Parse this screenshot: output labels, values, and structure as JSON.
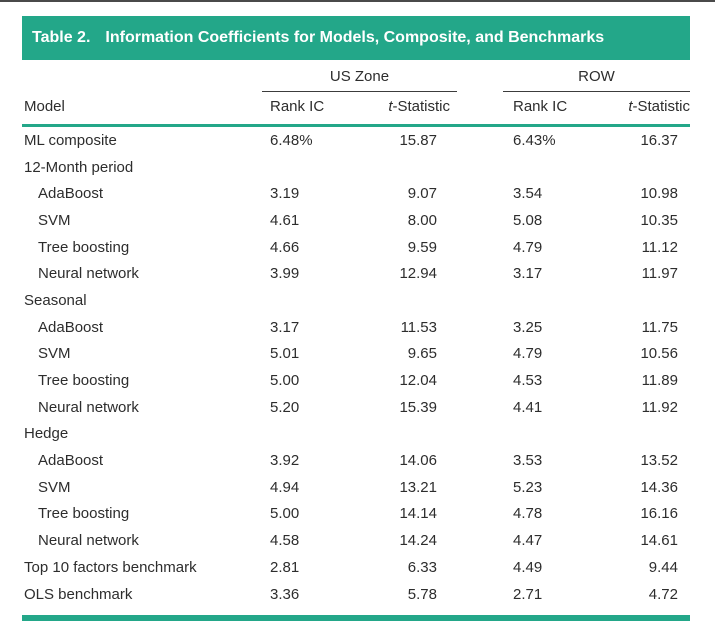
{
  "table": {
    "title_label": "Table 2.",
    "title": "Information Coefficients for Models, Composite, and Benchmarks",
    "model_header": "Model",
    "col_groups": [
      "US Zone",
      "ROW"
    ],
    "sub_headers": [
      {
        "em": "",
        "label": "Rank IC"
      },
      {
        "em": "t",
        "label": "-Statistic"
      },
      {
        "em": "",
        "label": "Rank IC"
      },
      {
        "em": "t",
        "label": "-Statistic"
      }
    ],
    "rows": [
      {
        "label": "ML composite",
        "indent": 0,
        "values": [
          "6.48%",
          "15.87",
          "6.43%",
          "16.37"
        ]
      },
      {
        "label": "12-Month period",
        "indent": 0,
        "values": [
          "",
          "",
          "",
          ""
        ]
      },
      {
        "label": "AdaBoost",
        "indent": 1,
        "values": [
          "3.19",
          "9.07",
          "3.54",
          "10.98"
        ]
      },
      {
        "label": "SVM",
        "indent": 1,
        "values": [
          "4.61",
          "8.00",
          "5.08",
          "10.35"
        ]
      },
      {
        "label": "Tree boosting",
        "indent": 1,
        "values": [
          "4.66",
          "9.59",
          "4.79",
          "11.12"
        ]
      },
      {
        "label": "Neural network",
        "indent": 1,
        "values": [
          "3.99",
          "12.94",
          "3.17",
          "11.97"
        ]
      },
      {
        "label": "Seasonal",
        "indent": 0,
        "values": [
          "",
          "",
          "",
          ""
        ]
      },
      {
        "label": "AdaBoost",
        "indent": 1,
        "values": [
          "3.17",
          "11.53",
          "3.25",
          "11.75"
        ]
      },
      {
        "label": "SVM",
        "indent": 1,
        "values": [
          "5.01",
          "9.65",
          "4.79",
          "10.56"
        ]
      },
      {
        "label": "Tree boosting",
        "indent": 1,
        "values": [
          "5.00",
          "12.04",
          "4.53",
          "11.89"
        ]
      },
      {
        "label": "Neural network",
        "indent": 1,
        "values": [
          "5.20",
          "15.39",
          "4.41",
          "11.92"
        ]
      },
      {
        "label": "Hedge",
        "indent": 0,
        "values": [
          "",
          "",
          "",
          ""
        ]
      },
      {
        "label": "AdaBoost",
        "indent": 1,
        "values": [
          "3.92",
          "14.06",
          "3.53",
          "13.52"
        ]
      },
      {
        "label": "SVM",
        "indent": 1,
        "values": [
          "4.94",
          "13.21",
          "5.23",
          "14.36"
        ]
      },
      {
        "label": "Tree boosting",
        "indent": 1,
        "values": [
          "5.00",
          "14.14",
          "4.78",
          "16.16"
        ]
      },
      {
        "label": "Neural network",
        "indent": 1,
        "values": [
          "4.58",
          "14.24",
          "4.47",
          "14.61"
        ]
      },
      {
        "label": "Top 10 factors benchmark",
        "indent": 0,
        "values": [
          "2.81",
          "6.33",
          "4.49",
          "9.44"
        ]
      },
      {
        "label": "OLS benchmark",
        "indent": 0,
        "values": [
          "3.36",
          "5.78",
          "2.71",
          "4.72"
        ]
      }
    ],
    "colors": {
      "accent_teal": "#23a789",
      "rule_dark": "#3c3c3c",
      "text": "#2d2d2d"
    }
  }
}
